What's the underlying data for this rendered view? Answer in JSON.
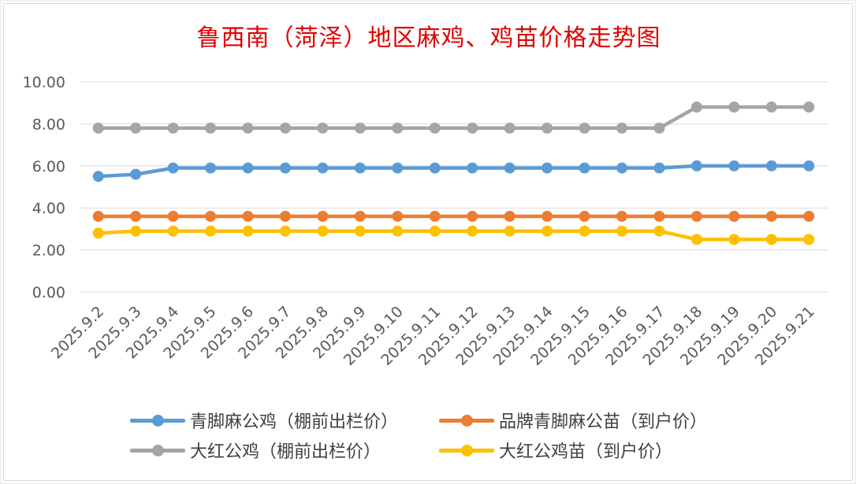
{
  "chart_data": {
    "type": "line",
    "title": "鲁西南（菏泽）地区麻鸡、鸡苗价格走势图",
    "xlabel": "",
    "ylabel": "",
    "ylim": [
      0,
      10
    ],
    "yticks": [
      "0.00",
      "2.00",
      "4.00",
      "6.00",
      "8.00",
      "10.00"
    ],
    "grid": true,
    "legend_position": "bottom",
    "categories": [
      "2025.9.2",
      "2025.9.3",
      "2025.9.4",
      "2025.9.5",
      "2025.9.6",
      "2025.9.7",
      "2025.9.8",
      "2025.9.9",
      "2025.9.10",
      "2025.9.11",
      "2025.9.12",
      "2025.9.13",
      "2025.9.14",
      "2025.9.15",
      "2025.9.16",
      "2025.9.17",
      "2025.9.18",
      "2025.9.19",
      "2025.9.20",
      "2025.9.21"
    ],
    "series": [
      {
        "name": "青脚麻公鸡（棚前出栏价）",
        "color": "#5b9bd5",
        "values": [
          5.5,
          5.6,
          5.9,
          5.9,
          5.9,
          5.9,
          5.9,
          5.9,
          5.9,
          5.9,
          5.9,
          5.9,
          5.9,
          5.9,
          5.9,
          5.9,
          6.0,
          6.0,
          6.0,
          6.0
        ]
      },
      {
        "name": "品牌青脚麻公苗（到户价）",
        "color": "#ed7d31",
        "values": [
          3.6,
          3.6,
          3.6,
          3.6,
          3.6,
          3.6,
          3.6,
          3.6,
          3.6,
          3.6,
          3.6,
          3.6,
          3.6,
          3.6,
          3.6,
          3.6,
          3.6,
          3.6,
          3.6,
          3.6
        ]
      },
      {
        "name": "大红公鸡（棚前出栏价）",
        "color": "#a5a5a5",
        "values": [
          7.8,
          7.8,
          7.8,
          7.8,
          7.8,
          7.8,
          7.8,
          7.8,
          7.8,
          7.8,
          7.8,
          7.8,
          7.8,
          7.8,
          7.8,
          7.8,
          8.8,
          8.8,
          8.8,
          8.8
        ]
      },
      {
        "name": "大红公鸡苗（到户价）",
        "color": "#ffc000",
        "values": [
          2.8,
          2.9,
          2.9,
          2.9,
          2.9,
          2.9,
          2.9,
          2.9,
          2.9,
          2.9,
          2.9,
          2.9,
          2.9,
          2.9,
          2.9,
          2.9,
          2.5,
          2.5,
          2.5,
          2.5
        ]
      }
    ]
  }
}
